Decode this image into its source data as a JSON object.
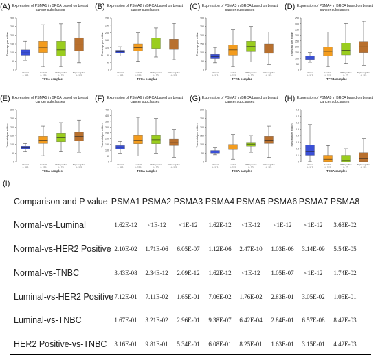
{
  "panels": [
    {
      "letter": "(A)",
      "title": "Expression of PSMA1 in BRCA based on breast cancer subclasses",
      "ymin": 0,
      "ymax": 300,
      "ticks": [
        0,
        50,
        100,
        150,
        200,
        250,
        300
      ]
    },
    {
      "letter": "(B)",
      "title": "Expression of PSMA2 in BRCA based on breast cancer subclasses",
      "ymin": 0,
      "ymax": 280,
      "ticks": [
        0,
        40,
        80,
        120,
        160,
        200,
        240,
        280
      ]
    },
    {
      "letter": "(C)",
      "title": "Expression of PSMA3 in BRCA based on breast cancer subclasses",
      "ymin": 0,
      "ymax": 300,
      "ticks": [
        0,
        50,
        100,
        150,
        200,
        250,
        300
      ]
    },
    {
      "letter": "(D)",
      "title": "Expression of PSMA4 in BRCA based on breast cancer subclasses",
      "ymin": 0,
      "ymax": 450,
      "ticks": [
        0,
        50,
        100,
        150,
        200,
        250,
        300,
        350,
        400,
        450
      ]
    },
    {
      "letter": "(E)",
      "title": "Expression of PSMA5 in BRCA based on breast cancer subclasses",
      "ymin": 0,
      "ymax": 300,
      "ticks": [
        0,
        50,
        100,
        150,
        200,
        250,
        300
      ]
    },
    {
      "letter": "(F)",
      "title": "Expression of PSMA6 in BRCA based on breast cancer subclasses",
      "ymin": 0,
      "ymax": 450,
      "ticks": [
        0,
        50,
        100,
        150,
        200,
        250,
        300,
        350,
        400,
        450
      ]
    },
    {
      "letter": "(G)",
      "title": "Expression of PSMA7 in BRCA based on breast cancer subclasses",
      "ymin": 0,
      "ymax": 300,
      "ticks": [
        0,
        50,
        100,
        150,
        200,
        250,
        300
      ]
    },
    {
      "letter": "(H)",
      "title": "Expression of PSMA8 in BRCA based on breast cancer subclasses",
      "ymin": 0,
      "ymax": 0.8,
      "ticks": [
        0,
        0.1,
        0.2,
        0.3,
        0.4,
        0.5,
        0.6,
        0.7,
        0.8
      ]
    }
  ],
  "axis": {
    "ylabel": "Transcript per million",
    "xlabel": "TCGA samples",
    "groups": [
      "Normal",
      "Luminal",
      "HER2 positive",
      "Triple negative"
    ],
    "group_counts": [
      "(n=114)",
      "(n=566)",
      "(n=37)",
      "(n=116)"
    ]
  },
  "colors": {
    "Normal": "#3a4fd6",
    "Luminal": "#f39c1e",
    "HER2 positive": "#9acd1e",
    "Triple negative": "#b8702e"
  },
  "chart_data": [
    {
      "type": "box",
      "gene": "PSMA1",
      "groups": [
        "Normal",
        "Luminal",
        "HER2 positive",
        "Triple negative"
      ],
      "boxes": [
        {
          "min": 55,
          "q1": 85,
          "median": 98,
          "q3": 115,
          "max": 165
        },
        {
          "min": 20,
          "q1": 100,
          "median": 130,
          "q3": 165,
          "max": 260
        },
        {
          "min": 20,
          "q1": 80,
          "median": 115,
          "q3": 165,
          "max": 265
        },
        {
          "min": 40,
          "q1": 110,
          "median": 145,
          "q3": 185,
          "max": 275
        }
      ]
    },
    {
      "type": "box",
      "gene": "PSMA2",
      "groups": [
        "Normal",
        "Luminal",
        "HER2 positive",
        "Triple negative"
      ],
      "boxes": [
        {
          "min": 75,
          "q1": 90,
          "median": 97,
          "q3": 105,
          "max": 125
        },
        {
          "min": 45,
          "q1": 100,
          "median": 120,
          "q3": 140,
          "max": 200
        },
        {
          "min": 70,
          "q1": 115,
          "median": 135,
          "q3": 170,
          "max": 225
        },
        {
          "min": 55,
          "q1": 110,
          "median": 135,
          "q3": 165,
          "max": 250
        }
      ]
    },
    {
      "type": "box",
      "gene": "PSMA3",
      "groups": [
        "Normal",
        "Luminal",
        "HER2 positive",
        "Triple negative"
      ],
      "boxes": [
        {
          "min": 40,
          "q1": 65,
          "median": 78,
          "q3": 90,
          "max": 130
        },
        {
          "min": 20,
          "q1": 85,
          "median": 115,
          "q3": 145,
          "max": 230
        },
        {
          "min": 45,
          "q1": 105,
          "median": 135,
          "q3": 165,
          "max": 250
        },
        {
          "min": 30,
          "q1": 95,
          "median": 120,
          "q3": 150,
          "max": 220
        }
      ]
    },
    {
      "type": "box",
      "gene": "PSMA4",
      "groups": [
        "Normal",
        "Luminal",
        "HER2 positive",
        "Triple negative"
      ],
      "boxes": [
        {
          "min": 65,
          "q1": 90,
          "median": 105,
          "q3": 120,
          "max": 150
        },
        {
          "min": 30,
          "q1": 120,
          "median": 160,
          "q3": 200,
          "max": 330
        },
        {
          "min": 55,
          "q1": 130,
          "median": 170,
          "q3": 235,
          "max": 400
        },
        {
          "min": 40,
          "q1": 150,
          "median": 200,
          "q3": 245,
          "max": 420
        }
      ]
    },
    {
      "type": "box",
      "gene": "PSMA5",
      "groups": [
        "Normal",
        "Luminal",
        "HER2 positive",
        "Triple negative"
      ],
      "boxes": [
        {
          "min": 60,
          "q1": 75,
          "median": 82,
          "q3": 90,
          "max": 105
        },
        {
          "min": 35,
          "q1": 105,
          "median": 125,
          "q3": 145,
          "max": 205
        },
        {
          "min": 60,
          "q1": 115,
          "median": 140,
          "q3": 165,
          "max": 225
        },
        {
          "min": 55,
          "q1": 120,
          "median": 145,
          "q3": 170,
          "max": 240
        }
      ]
    },
    {
      "type": "box",
      "gene": "PSMA6",
      "groups": [
        "Normal",
        "Luminal",
        "HER2 positive",
        "Triple negative"
      ],
      "boxes": [
        {
          "min": 75,
          "q1": 110,
          "median": 125,
          "q3": 140,
          "max": 175
        },
        {
          "min": 50,
          "q1": 155,
          "median": 185,
          "q3": 230,
          "max": 385
        },
        {
          "min": 75,
          "q1": 155,
          "median": 190,
          "q3": 230,
          "max": 375
        },
        {
          "min": 40,
          "q1": 140,
          "median": 165,
          "q3": 195,
          "max": 280
        }
      ]
    },
    {
      "type": "box",
      "gene": "PSMA7",
      "groups": [
        "Normal",
        "Luminal",
        "HER2 positive",
        "Triple negative"
      ],
      "boxes": [
        {
          "min": 40,
          "q1": 50,
          "median": 58,
          "q3": 65,
          "max": 80
        },
        {
          "min": 15,
          "q1": 70,
          "median": 85,
          "q3": 100,
          "max": 155
        },
        {
          "min": 55,
          "q1": 90,
          "median": 102,
          "q3": 112,
          "max": 150
        },
        {
          "min": 25,
          "q1": 105,
          "median": 125,
          "q3": 145,
          "max": 205
        }
      ]
    },
    {
      "type": "box",
      "gene": "PSMA8",
      "groups": [
        "Normal",
        "Luminal",
        "HER2 positive",
        "Triple negative"
      ],
      "boxes": [
        {
          "min": 0,
          "q1": 0.1,
          "median": 0.16,
          "q3": 0.26,
          "max": 0.57
        },
        {
          "min": 0,
          "q1": 0,
          "median": 0.04,
          "q3": 0.1,
          "max": 0.25
        },
        {
          "min": 0,
          "q1": 0,
          "median": 0.02,
          "q3": 0.1,
          "max": 0.2
        },
        {
          "min": 0,
          "q1": 0,
          "median": 0.05,
          "q3": 0.14,
          "max": 0.35
        }
      ]
    },
    {
      "type": "table",
      "columns": [
        "Comparison and P value",
        "PSMA1",
        "PSMA2",
        "PSMA3",
        "PSMA4",
        "PSMA5",
        "PSMA6",
        "PSMA7",
        "PSMA8"
      ],
      "rows": [
        [
          "Normal-vs-Luminal",
          "1.62E-12",
          "<1E-12",
          "<1E-12",
          "1.62E-12",
          "<1E-12",
          "<1E-12",
          "<1E-12",
          "3.63E-02"
        ],
        [
          "Normal-vs-HER2 Positive",
          "2.10E-02",
          "1.71E-06",
          "6.05E-07",
          "1.12E-06",
          "2.47E-10",
          "1.03E-06",
          "3.14E-09",
          "5.54E-05"
        ],
        [
          "Normal-vs-TNBC",
          "3.43E-08",
          "2.34E-12",
          "2.09E-12",
          "1.62E-12",
          "<1E-12",
          "1.05E-07",
          "<1E-12",
          "1.74E-02"
        ],
        [
          "Luminal-vs-HER2 Positive",
          "7.12E-01",
          "7.11E-02",
          "1.65E-01",
          "7.06E-02",
          "1.76E-02",
          "2.83E-01",
          "3.05E-02",
          "1.05E-01"
        ],
        [
          "Luminal-vs-TNBC",
          "1.67E-01",
          "3.21E-02",
          "2.96E-01",
          "9.38E-07",
          "6.42E-04",
          "2.84E-01",
          "6.57E-08",
          "8.42E-03"
        ],
        [
          "HER2 Positive-vs-TNBC",
          "3.16E-01",
          "9.81E-01",
          "5.34E-01",
          "6.08E-01",
          "8.25E-01",
          "1.63E-01",
          "3.15E-01",
          "4.42E-03"
        ]
      ]
    },
    {
      "table_letter": "(I)"
    }
  ]
}
